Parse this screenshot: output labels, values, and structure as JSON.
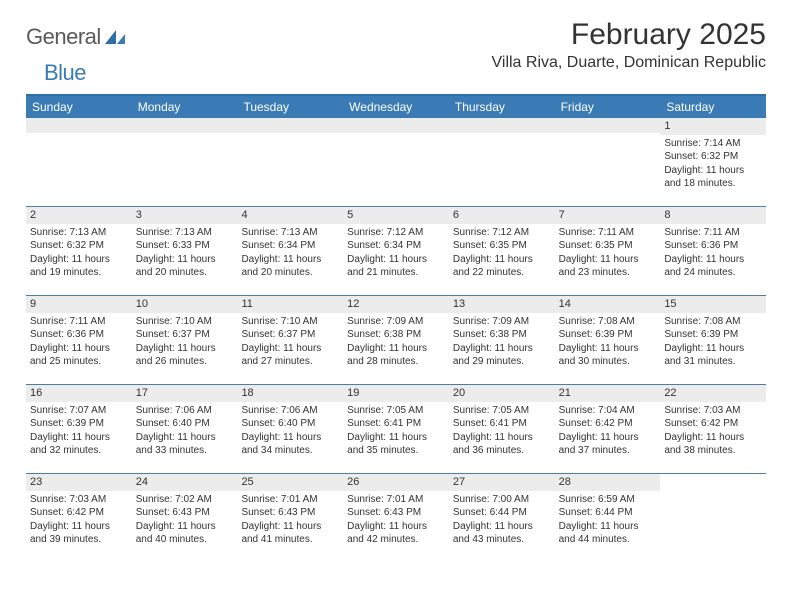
{
  "logo": {
    "word1": "General",
    "word2": "Blue"
  },
  "title": "February 2025",
  "location": "Villa Riva, Duarte, Dominican Republic",
  "header_color": "#3b7bb5",
  "top_border_color": "#2f6fa8",
  "row_divider_color": "#4c7fa8",
  "daynum_bg": "#ececec",
  "text_color": "#333333",
  "fontsize_title": 30,
  "fontsize_location": 16,
  "fontsize_header": 12,
  "fontsize_daynum": 11,
  "fontsize_body": 10,
  "day_labels": [
    "Sunday",
    "Monday",
    "Tuesday",
    "Wednesday",
    "Thursday",
    "Friday",
    "Saturday"
  ],
  "weeks": [
    [
      {
        "n": "",
        "lines": []
      },
      {
        "n": "",
        "lines": []
      },
      {
        "n": "",
        "lines": []
      },
      {
        "n": "",
        "lines": []
      },
      {
        "n": "",
        "lines": []
      },
      {
        "n": "",
        "lines": []
      },
      {
        "n": "1",
        "lines": [
          "Sunrise: 7:14 AM",
          "Sunset: 6:32 PM",
          "Daylight: 11 hours and 18 minutes."
        ]
      }
    ],
    [
      {
        "n": "2",
        "lines": [
          "Sunrise: 7:13 AM",
          "Sunset: 6:32 PM",
          "Daylight: 11 hours and 19 minutes."
        ]
      },
      {
        "n": "3",
        "lines": [
          "Sunrise: 7:13 AM",
          "Sunset: 6:33 PM",
          "Daylight: 11 hours and 20 minutes."
        ]
      },
      {
        "n": "4",
        "lines": [
          "Sunrise: 7:13 AM",
          "Sunset: 6:34 PM",
          "Daylight: 11 hours and 20 minutes."
        ]
      },
      {
        "n": "5",
        "lines": [
          "Sunrise: 7:12 AM",
          "Sunset: 6:34 PM",
          "Daylight: 11 hours and 21 minutes."
        ]
      },
      {
        "n": "6",
        "lines": [
          "Sunrise: 7:12 AM",
          "Sunset: 6:35 PM",
          "Daylight: 11 hours and 22 minutes."
        ]
      },
      {
        "n": "7",
        "lines": [
          "Sunrise: 7:11 AM",
          "Sunset: 6:35 PM",
          "Daylight: 11 hours and 23 minutes."
        ]
      },
      {
        "n": "8",
        "lines": [
          "Sunrise: 7:11 AM",
          "Sunset: 6:36 PM",
          "Daylight: 11 hours and 24 minutes."
        ]
      }
    ],
    [
      {
        "n": "9",
        "lines": [
          "Sunrise: 7:11 AM",
          "Sunset: 6:36 PM",
          "Daylight: 11 hours and 25 minutes."
        ]
      },
      {
        "n": "10",
        "lines": [
          "Sunrise: 7:10 AM",
          "Sunset: 6:37 PM",
          "Daylight: 11 hours and 26 minutes."
        ]
      },
      {
        "n": "11",
        "lines": [
          "Sunrise: 7:10 AM",
          "Sunset: 6:37 PM",
          "Daylight: 11 hours and 27 minutes."
        ]
      },
      {
        "n": "12",
        "lines": [
          "Sunrise: 7:09 AM",
          "Sunset: 6:38 PM",
          "Daylight: 11 hours and 28 minutes."
        ]
      },
      {
        "n": "13",
        "lines": [
          "Sunrise: 7:09 AM",
          "Sunset: 6:38 PM",
          "Daylight: 11 hours and 29 minutes."
        ]
      },
      {
        "n": "14",
        "lines": [
          "Sunrise: 7:08 AM",
          "Sunset: 6:39 PM",
          "Daylight: 11 hours and 30 minutes."
        ]
      },
      {
        "n": "15",
        "lines": [
          "Sunrise: 7:08 AM",
          "Sunset: 6:39 PM",
          "Daylight: 11 hours and 31 minutes."
        ]
      }
    ],
    [
      {
        "n": "16",
        "lines": [
          "Sunrise: 7:07 AM",
          "Sunset: 6:39 PM",
          "Daylight: 11 hours and 32 minutes."
        ]
      },
      {
        "n": "17",
        "lines": [
          "Sunrise: 7:06 AM",
          "Sunset: 6:40 PM",
          "Daylight: 11 hours and 33 minutes."
        ]
      },
      {
        "n": "18",
        "lines": [
          "Sunrise: 7:06 AM",
          "Sunset: 6:40 PM",
          "Daylight: 11 hours and 34 minutes."
        ]
      },
      {
        "n": "19",
        "lines": [
          "Sunrise: 7:05 AM",
          "Sunset: 6:41 PM",
          "Daylight: 11 hours and 35 minutes."
        ]
      },
      {
        "n": "20",
        "lines": [
          "Sunrise: 7:05 AM",
          "Sunset: 6:41 PM",
          "Daylight: 11 hours and 36 minutes."
        ]
      },
      {
        "n": "21",
        "lines": [
          "Sunrise: 7:04 AM",
          "Sunset: 6:42 PM",
          "Daylight: 11 hours and 37 minutes."
        ]
      },
      {
        "n": "22",
        "lines": [
          "Sunrise: 7:03 AM",
          "Sunset: 6:42 PM",
          "Daylight: 11 hours and 38 minutes."
        ]
      }
    ],
    [
      {
        "n": "23",
        "lines": [
          "Sunrise: 7:03 AM",
          "Sunset: 6:42 PM",
          "Daylight: 11 hours and 39 minutes."
        ]
      },
      {
        "n": "24",
        "lines": [
          "Sunrise: 7:02 AM",
          "Sunset: 6:43 PM",
          "Daylight: 11 hours and 40 minutes."
        ]
      },
      {
        "n": "25",
        "lines": [
          "Sunrise: 7:01 AM",
          "Sunset: 6:43 PM",
          "Daylight: 11 hours and 41 minutes."
        ]
      },
      {
        "n": "26",
        "lines": [
          "Sunrise: 7:01 AM",
          "Sunset: 6:43 PM",
          "Daylight: 11 hours and 42 minutes."
        ]
      },
      {
        "n": "27",
        "lines": [
          "Sunrise: 7:00 AM",
          "Sunset: 6:44 PM",
          "Daylight: 11 hours and 43 minutes."
        ]
      },
      {
        "n": "28",
        "lines": [
          "Sunrise: 6:59 AM",
          "Sunset: 6:44 PM",
          "Daylight: 11 hours and 44 minutes."
        ]
      },
      {
        "n": "",
        "lines": []
      }
    ]
  ]
}
